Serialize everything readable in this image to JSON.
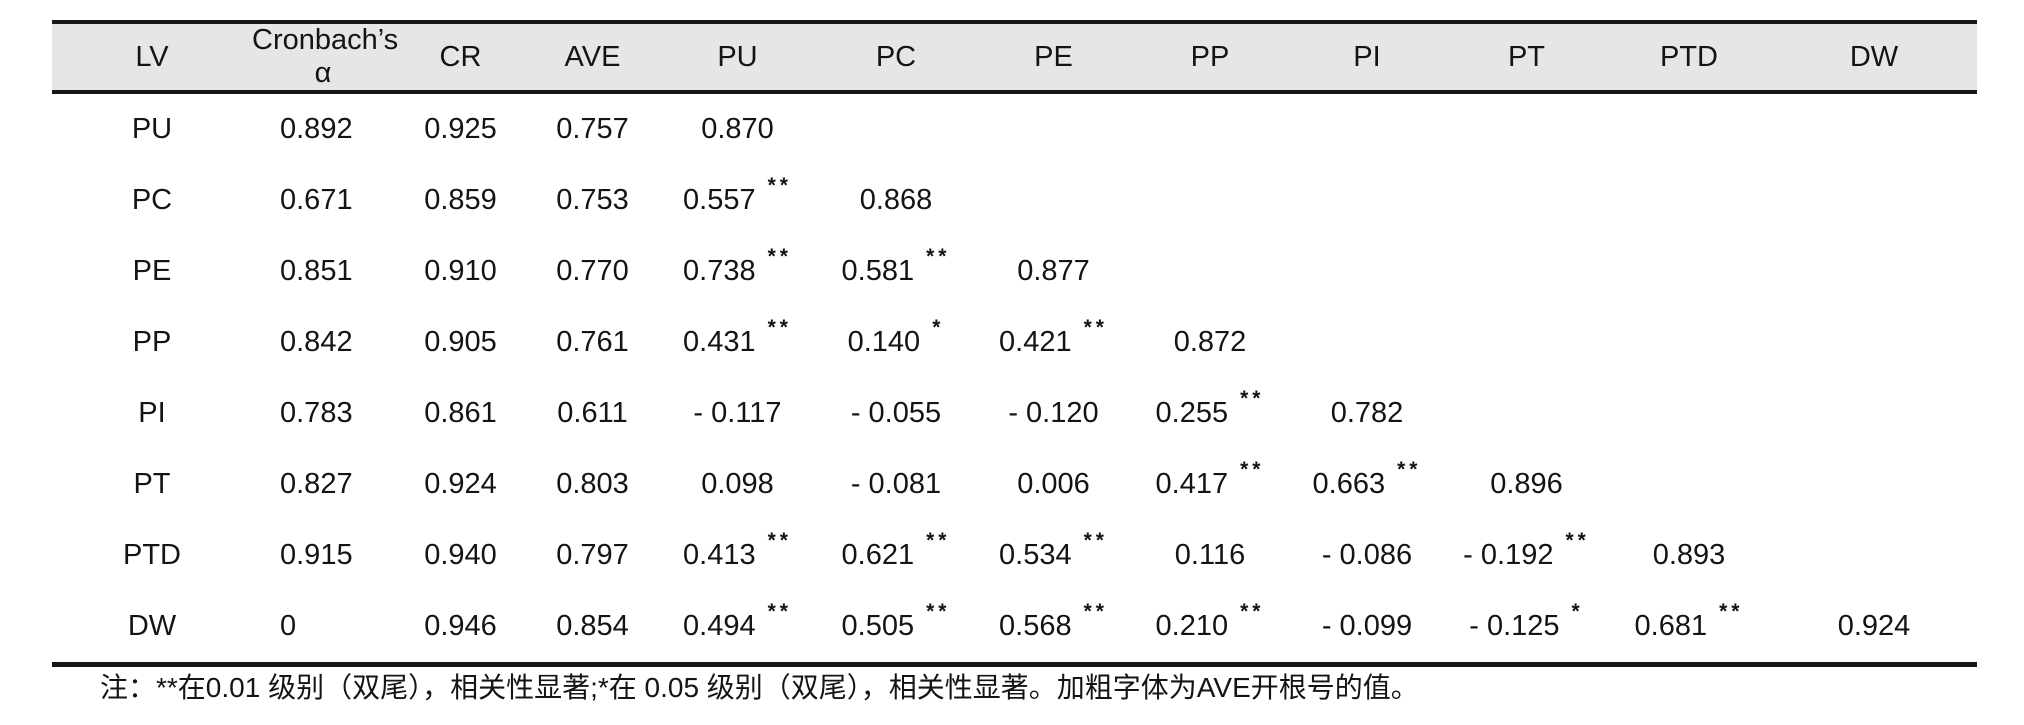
{
  "table": {
    "columns": [
      "LV",
      "Cronbach’s α",
      "CR",
      "AVE",
      "PU",
      "PC",
      "PE",
      "PP",
      "PI",
      "PT",
      "PTD",
      "DW"
    ],
    "rows": [
      {
        "label": "PU",
        "values": [
          [
            "0.892",
            ""
          ],
          [
            "0.925",
            ""
          ],
          [
            "0.757",
            ""
          ],
          [
            "0.870",
            ""
          ],
          [
            "",
            ""
          ],
          [
            "",
            ""
          ],
          [
            "",
            ""
          ],
          [
            "",
            ""
          ],
          [
            "",
            ""
          ],
          [
            "",
            ""
          ],
          [
            "",
            ""
          ]
        ]
      },
      {
        "label": "PC",
        "values": [
          [
            "0.671",
            ""
          ],
          [
            "0.859",
            ""
          ],
          [
            "0.753",
            ""
          ],
          [
            "0.557",
            "**"
          ],
          [
            "0.868",
            ""
          ],
          [
            "",
            ""
          ],
          [
            "",
            ""
          ],
          [
            "",
            ""
          ],
          [
            "",
            ""
          ],
          [
            "",
            ""
          ],
          [
            "",
            ""
          ]
        ]
      },
      {
        "label": "PE",
        "values": [
          [
            "0.851",
            ""
          ],
          [
            "0.910",
            ""
          ],
          [
            "0.770",
            ""
          ],
          [
            "0.738",
            "**"
          ],
          [
            "0.581",
            "**"
          ],
          [
            "0.877",
            ""
          ],
          [
            "",
            ""
          ],
          [
            "",
            ""
          ],
          [
            "",
            ""
          ],
          [
            "",
            ""
          ],
          [
            "",
            ""
          ]
        ]
      },
      {
        "label": "PP",
        "values": [
          [
            "0.842",
            ""
          ],
          [
            "0.905",
            ""
          ],
          [
            "0.761",
            ""
          ],
          [
            "0.431",
            "**"
          ],
          [
            "0.140",
            "*"
          ],
          [
            "0.421",
            "**"
          ],
          [
            "0.872",
            ""
          ],
          [
            "",
            ""
          ],
          [
            "",
            ""
          ],
          [
            "",
            ""
          ],
          [
            "",
            ""
          ]
        ]
      },
      {
        "label": "PI",
        "values": [
          [
            "0.783",
            ""
          ],
          [
            "0.861",
            ""
          ],
          [
            "0.611",
            ""
          ],
          [
            "- 0.117",
            ""
          ],
          [
            "- 0.055",
            ""
          ],
          [
            "- 0.120",
            ""
          ],
          [
            "0.255",
            "**"
          ],
          [
            "0.782",
            ""
          ],
          [
            "",
            ""
          ],
          [
            "",
            ""
          ],
          [
            "",
            ""
          ]
        ]
      },
      {
        "label": "PT",
        "values": [
          [
            "0.827",
            ""
          ],
          [
            "0.924",
            ""
          ],
          [
            "0.803",
            ""
          ],
          [
            "0.098",
            ""
          ],
          [
            "- 0.081",
            ""
          ],
          [
            "0.006",
            ""
          ],
          [
            "0.417",
            "**"
          ],
          [
            "0.663",
            "**"
          ],
          [
            "0.896",
            ""
          ],
          [
            "",
            ""
          ],
          [
            "",
            ""
          ]
        ]
      },
      {
        "label": "PTD",
        "values": [
          [
            "0.915",
            ""
          ],
          [
            "0.940",
            ""
          ],
          [
            "0.797",
            ""
          ],
          [
            "0.413",
            "**"
          ],
          [
            "0.621",
            "**"
          ],
          [
            "0.534",
            "**"
          ],
          [
            "0.116",
            ""
          ],
          [
            "- 0.086",
            ""
          ],
          [
            "- 0.192",
            "**"
          ],
          [
            "0.893",
            ""
          ],
          [
            "",
            ""
          ]
        ]
      },
      {
        "label": "DW",
        "values": [
          [
            "0",
            ""
          ],
          [
            "0.946",
            ""
          ],
          [
            "0.854",
            ""
          ],
          [
            "0.494",
            "**"
          ],
          [
            "0.505",
            "**"
          ],
          [
            "0.568",
            "**"
          ],
          [
            "0.210",
            "**"
          ],
          [
            "- 0.099",
            ""
          ],
          [
            "- 0.125",
            "*"
          ],
          [
            "0.681",
            "**"
          ],
          [
            "0.924",
            ""
          ]
        ]
      }
    ]
  },
  "note": {
    "text": "注：**在0.01 级别（双尾），相关性显著;*在 0.05 级别（双尾），相关性显著。加粗字体为AVE开根号的值。"
  },
  "colors": {
    "header_background": "#e6e6e6",
    "border": "#161616",
    "text": "#141414"
  }
}
